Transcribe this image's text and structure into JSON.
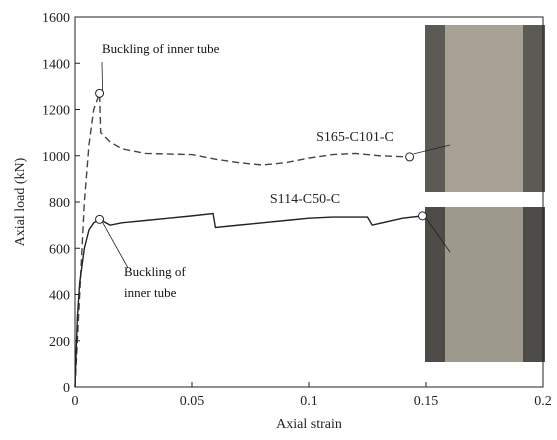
{
  "chart_data": {
    "type": "line",
    "xlabel": "Axial strain",
    "ylabel": "Axial load (kN)",
    "xlim": [
      0,
      0.2
    ],
    "xticks": [
      0,
      0.05,
      0.1,
      0.15,
      0.2
    ],
    "ylim": [
      0,
      1600
    ],
    "yticks": [
      0,
      200,
      400,
      600,
      800,
      1000,
      1200,
      1400,
      1600
    ],
    "series": [
      {
        "name": "S165-C101-C",
        "color": "#444444",
        "dashed": true,
        "x": [
          0,
          0.002,
          0.004,
          0.006,
          0.008,
          0.0105,
          0.011,
          0.015,
          0.02,
          0.03,
          0.05,
          0.06,
          0.07,
          0.08,
          0.09,
          0.1,
          0.11,
          0.12,
          0.13,
          0.143
        ],
        "values": [
          0,
          400,
          800,
          1050,
          1200,
          1270,
          1100,
          1060,
          1030,
          1010,
          1005,
          985,
          970,
          960,
          970,
          990,
          1005,
          1010,
          1000,
          995
        ]
      },
      {
        "name": "S114-C50-C",
        "color": "#222222",
        "dashed": false,
        "x": [
          0,
          0.001,
          0.002,
          0.004,
          0.006,
          0.008,
          0.0105,
          0.015,
          0.02,
          0.03,
          0.04,
          0.05,
          0.059,
          0.06,
          0.07,
          0.08,
          0.09,
          0.1,
          0.11,
          0.125,
          0.127,
          0.14,
          0.1485
        ],
        "values": [
          0,
          300,
          450,
          600,
          680,
          710,
          725,
          700,
          710,
          720,
          730,
          740,
          750,
          690,
          700,
          710,
          720,
          730,
          735,
          735,
          700,
          730,
          740
        ]
      }
    ],
    "annotations": [
      {
        "text": "Buckling of inner tube",
        "x": 0.0105,
        "y": 1270
      },
      {
        "text": "Buckling of\ninner tube",
        "x": 0.0105,
        "y": 725
      }
    ]
  }
}
